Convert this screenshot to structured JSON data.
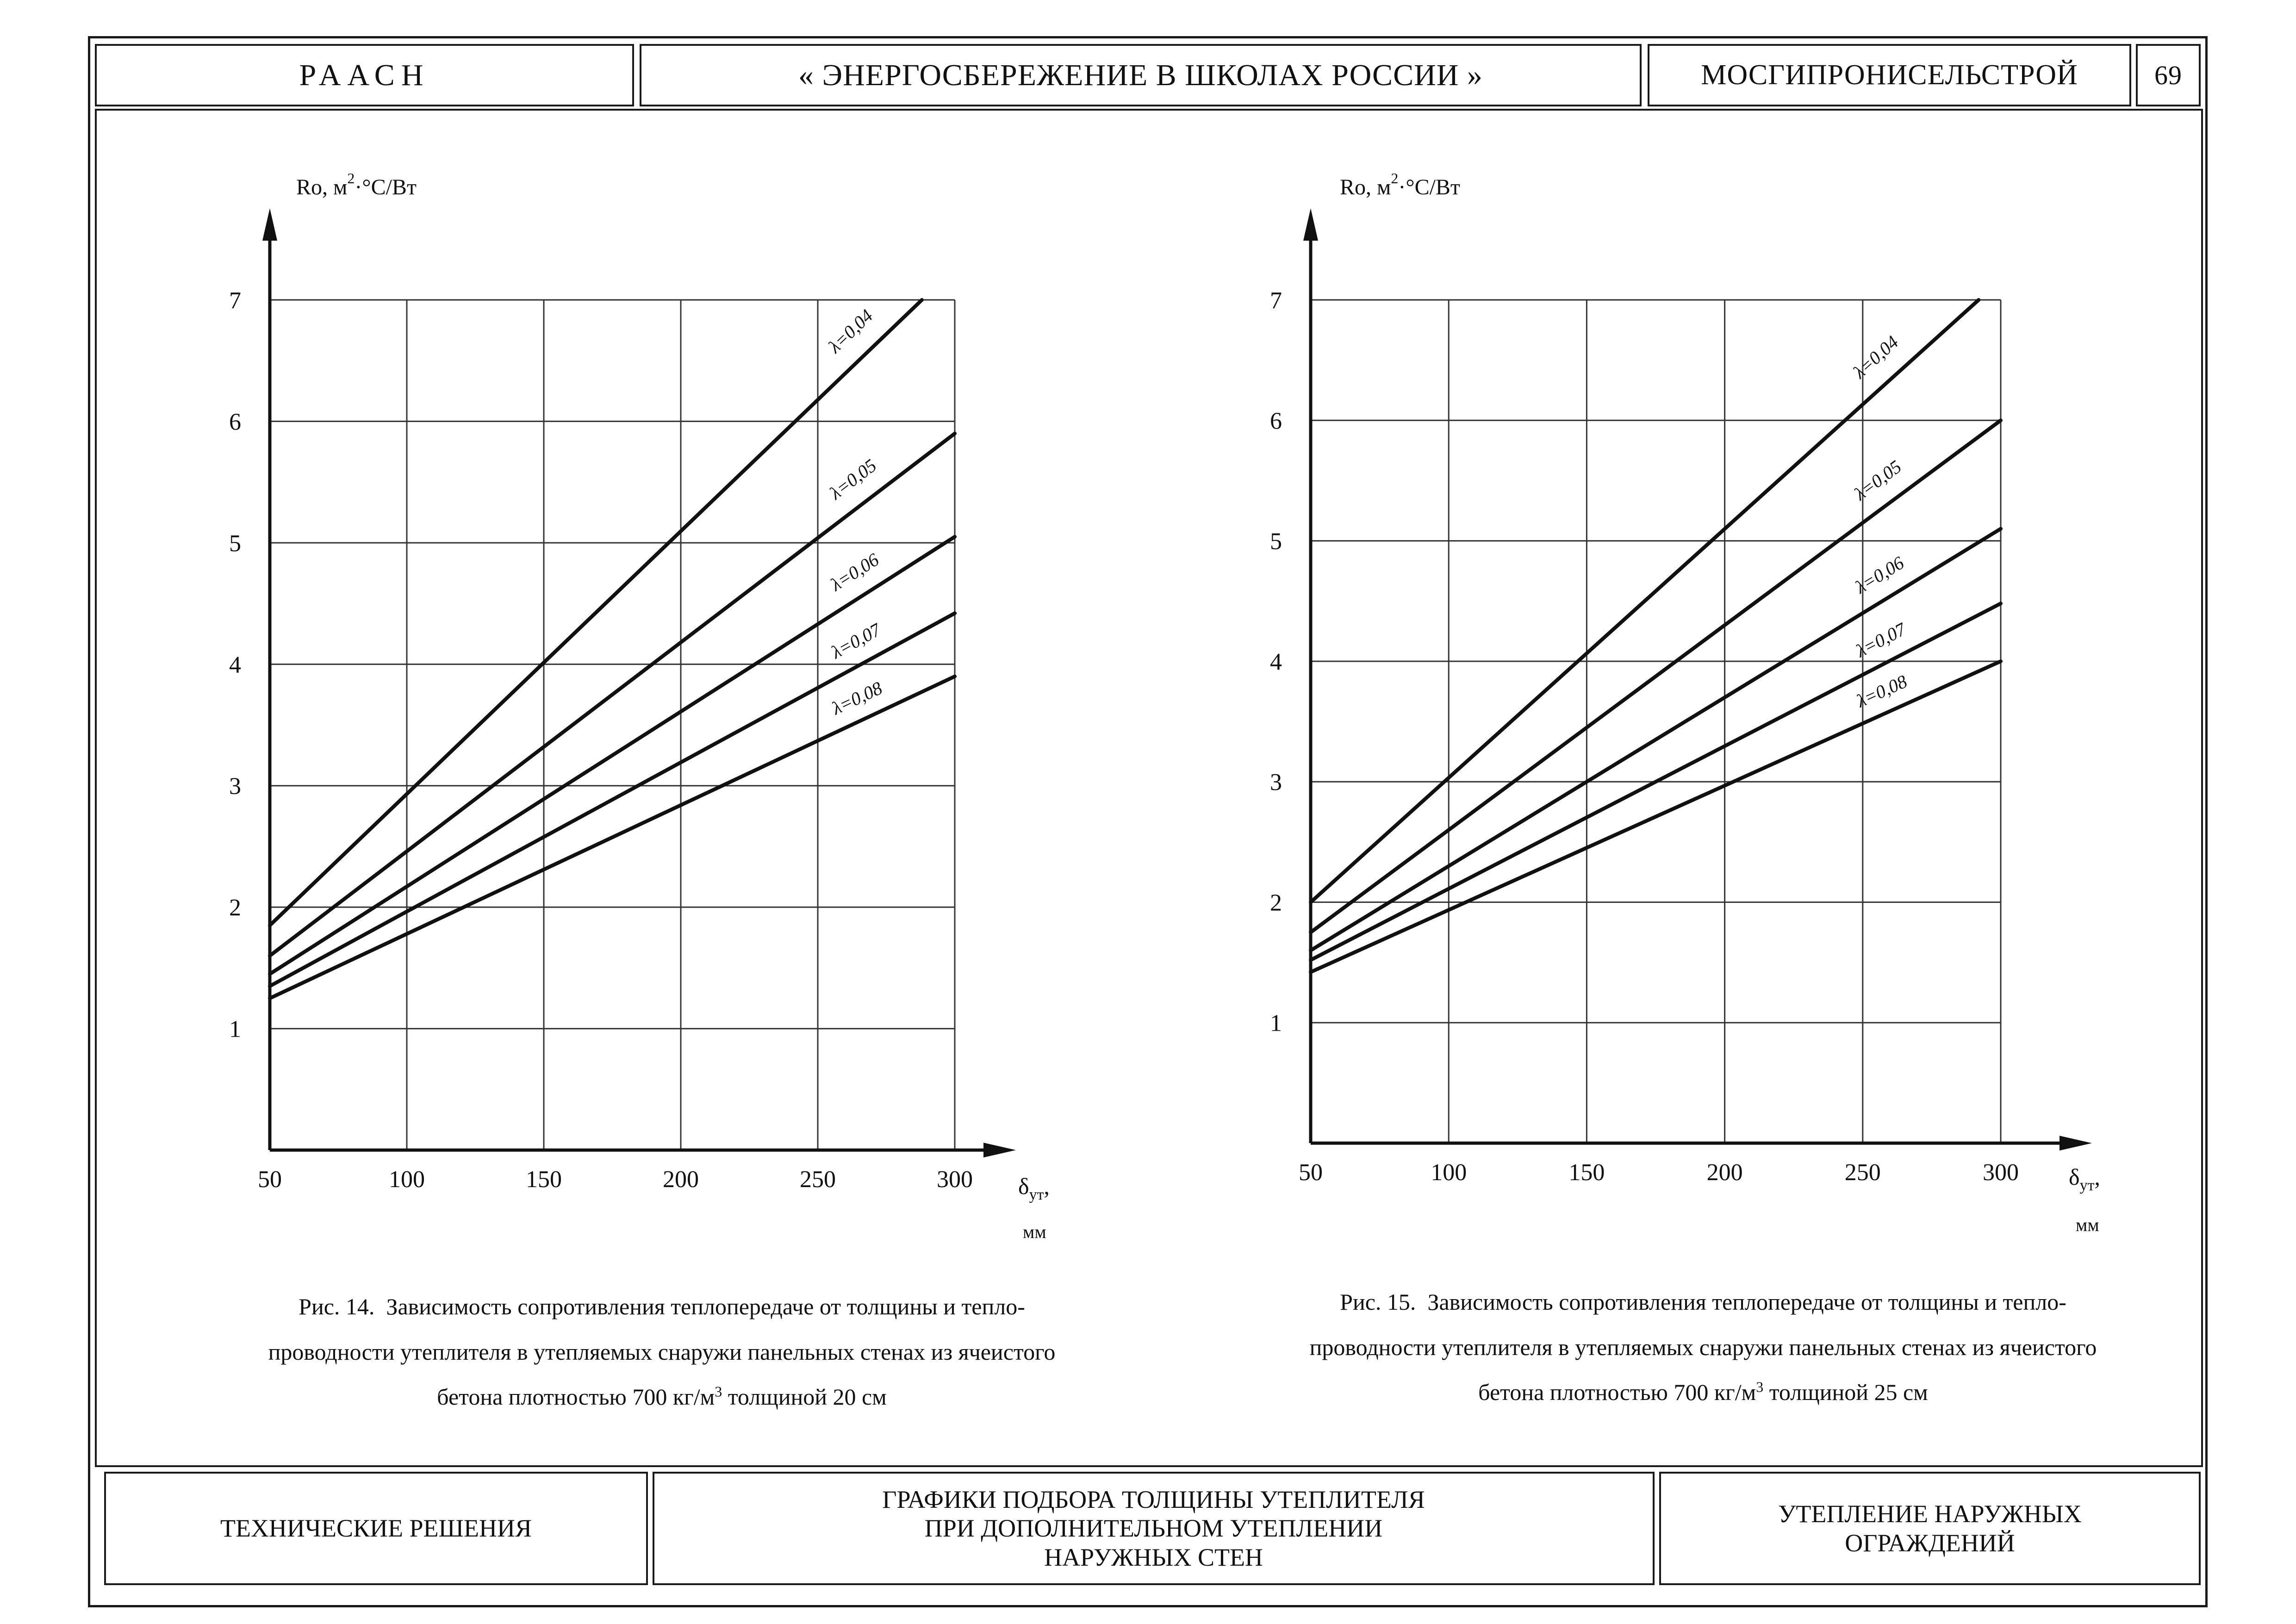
{
  "header": {
    "left": "РААСН",
    "center": "« ЭНЕРГОСБЕРЕЖЕНИЕ В ШКОЛАХ РОССИИ »",
    "right": "МОСГИПРОНИСЕЛЬСТРОЙ",
    "page_number": "69"
  },
  "charts": {
    "y_label_main": "Ro, м",
    "y_label_sup": "2",
    "y_label_rest": "·°C/Вт",
    "x_label_main": "δ",
    "x_label_sub": "ут",
    "x_label_comma": ",",
    "x_unit": "мм"
  },
  "chart_data": [
    {
      "type": "line",
      "title": "",
      "xlabel": "δут, мм",
      "ylabel": "Ro, м2·°C/Вт",
      "xlim": [
        50,
        300
      ],
      "ylim": [
        0,
        7
      ],
      "x_ticks": [
        50,
        100,
        150,
        200,
        250,
        300
      ],
      "y_ticks": [
        1,
        2,
        3,
        4,
        5,
        6,
        7
      ],
      "grid": true,
      "series": [
        {
          "name": "λ=0,04",
          "x": [
            50,
            288
          ],
          "y": [
            1.85,
            7.0
          ]
        },
        {
          "name": "λ=0,05",
          "x": [
            50,
            300
          ],
          "y": [
            1.6,
            5.9
          ]
        },
        {
          "name": "λ=0,06",
          "x": [
            50,
            300
          ],
          "y": [
            1.45,
            5.05
          ]
        },
        {
          "name": "λ=0,07",
          "x": [
            50,
            300
          ],
          "y": [
            1.35,
            4.42
          ]
        },
        {
          "name": "λ=0,08",
          "x": [
            50,
            300
          ],
          "y": [
            1.25,
            3.9
          ]
        }
      ]
    },
    {
      "type": "line",
      "title": "",
      "xlabel": "δут, мм",
      "ylabel": "Ro, м2·°C/Вт",
      "xlim": [
        50,
        300
      ],
      "ylim": [
        0,
        7
      ],
      "x_ticks": [
        50,
        100,
        150,
        200,
        250,
        300
      ],
      "y_ticks": [
        1,
        2,
        3,
        4,
        5,
        6,
        7
      ],
      "grid": true,
      "series": [
        {
          "name": "λ=0,04",
          "x": [
            50,
            292
          ],
          "y": [
            2.0,
            7.0
          ]
        },
        {
          "name": "λ=0,05",
          "x": [
            50,
            300
          ],
          "y": [
            1.75,
            6.0
          ]
        },
        {
          "name": "λ=0,06",
          "x": [
            50,
            300
          ],
          "y": [
            1.6,
            5.1
          ]
        },
        {
          "name": "λ=0,07",
          "x": [
            50,
            300
          ],
          "y": [
            1.52,
            4.48
          ]
        },
        {
          "name": "λ=0,08",
          "x": [
            50,
            300
          ],
          "y": [
            1.42,
            4.0
          ]
        }
      ]
    }
  ],
  "captions": [
    {
      "prefix": "Рис.",
      "num": "14.",
      "line1": "Зависимость сопротивления теплопередаче от толщины и тепло-",
      "line2": "проводности утеплителя в утепляемых снаружи панельных стенах из ячеистого",
      "line3a": "бетона плотностью 700 кг/м",
      "line3sup": "3",
      "line3b": " толщиной 20 см"
    },
    {
      "prefix": "Рис.",
      "num": "15.",
      "line1": "Зависимость сопротивления теплопередаче от толщины и тепло-",
      "line2": "проводности утеплителя в утепляемых снаружи панельных стенах из ячеистого",
      "line3a": "бетона плотностью 700 кг/м",
      "line3sup": "3",
      "line3b": " толщиной 25 см"
    }
  ],
  "footer": {
    "left": "ТЕХНИЧЕСКИЕ РЕШЕНИЯ",
    "center_line1": "ГРАФИКИ ПОДБОРА ТОЛЩИНЫ УТЕПЛИТЕЛЯ",
    "center_line2": "ПРИ ДОПОЛНИТЕЛЬНОМ УТЕПЛЕНИИ",
    "center_line3": "НАРУЖНЫХ СТЕН",
    "right_line1": "УТЕПЛЕНИЕ НАРУЖНЫХ",
    "right_line2": "ОГРАЖДЕНИЙ"
  },
  "colors": {
    "ink": "#111111",
    "grid": "#333333",
    "paper": "#ffffff"
  }
}
